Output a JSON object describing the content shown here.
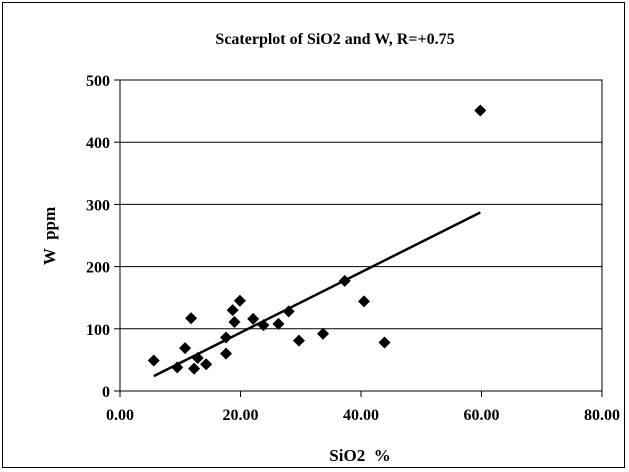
{
  "chart_data": {
    "type": "scatter",
    "title": "Scaterplot of SiO2 and W,   R=+0.75",
    "xlabel": "SiO2  %",
    "ylabel": "W  ppm",
    "xlim": [
      0,
      80
    ],
    "ylim": [
      0,
      500
    ],
    "x_ticks": [
      "0.00",
      "20.00",
      "40.00",
      "60.00",
      "80.00"
    ],
    "y_ticks": [
      "0",
      "100",
      "200",
      "300",
      "400",
      "500"
    ],
    "x_tick_values": [
      0,
      20,
      40,
      60,
      80
    ],
    "y_tick_values": [
      0,
      100,
      200,
      300,
      400,
      500
    ],
    "grid": "horizontal",
    "marker": "diamond",
    "points": [
      {
        "x": 5.6,
        "y": 49
      },
      {
        "x": 9.5,
        "y": 38
      },
      {
        "x": 10.8,
        "y": 69
      },
      {
        "x": 11.8,
        "y": 117
      },
      {
        "x": 12.3,
        "y": 36
      },
      {
        "x": 12.9,
        "y": 53
      },
      {
        "x": 14.3,
        "y": 43
      },
      {
        "x": 17.6,
        "y": 60
      },
      {
        "x": 17.6,
        "y": 86
      },
      {
        "x": 18.7,
        "y": 130
      },
      {
        "x": 19.0,
        "y": 111
      },
      {
        "x": 19.9,
        "y": 145
      },
      {
        "x": 22.1,
        "y": 116
      },
      {
        "x": 23.8,
        "y": 106
      },
      {
        "x": 26.3,
        "y": 108
      },
      {
        "x": 28.0,
        "y": 128
      },
      {
        "x": 29.7,
        "y": 81
      },
      {
        "x": 33.7,
        "y": 92
      },
      {
        "x": 37.3,
        "y": 177
      },
      {
        "x": 40.5,
        "y": 144
      },
      {
        "x": 43.9,
        "y": 78
      },
      {
        "x": 59.8,
        "y": 451
      }
    ],
    "trendline": {
      "x": [
        5.6,
        59.8
      ],
      "y": [
        24,
        287
      ]
    },
    "colors": {
      "marker": "#000000",
      "line": "#000000",
      "grid": "#000000"
    }
  }
}
